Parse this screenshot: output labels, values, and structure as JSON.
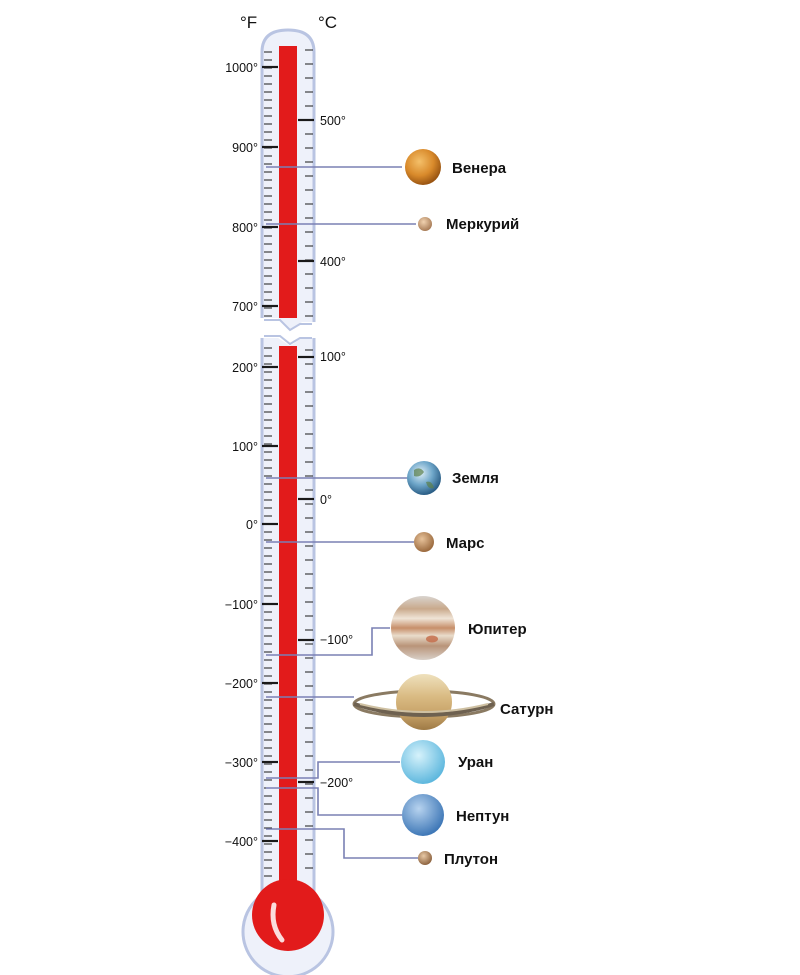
{
  "units": {
    "fahrenheit": "°F",
    "celsius": "°C"
  },
  "colors": {
    "mercury_fill": "#e21b1b",
    "tube_outline": "#b9c4e2",
    "tube_glass": "#eef1fa",
    "leader_line": "#7a80b4"
  },
  "scale": {
    "upper_f_labels": [
      "1000°",
      "900°",
      "800°",
      "700°"
    ],
    "upper_c_labels": [
      "500°",
      "400°"
    ],
    "lower_f_labels": [
      "200°",
      "100°",
      "0°",
      "−100°",
      "−200°",
      "−300°",
      "−400°"
    ],
    "lower_c_labels": [
      "100°",
      "0°",
      "−100°",
      "−200°"
    ]
  },
  "planets": [
    {
      "name": "Венера",
      "icon": "venus-icon"
    },
    {
      "name": "Меркурий",
      "icon": "mercury-icon"
    },
    {
      "name": "Земля",
      "icon": "earth-icon"
    },
    {
      "name": "Марс",
      "icon": "mars-icon"
    },
    {
      "name": "Юпитер",
      "icon": "jupiter-icon"
    },
    {
      "name": "Сатурн",
      "icon": "saturn-icon"
    },
    {
      "name": "Уран",
      "icon": "uranus-icon"
    },
    {
      "name": "Нептун",
      "icon": "neptune-icon"
    },
    {
      "name": "Плутон",
      "icon": "pluto-icon"
    }
  ]
}
